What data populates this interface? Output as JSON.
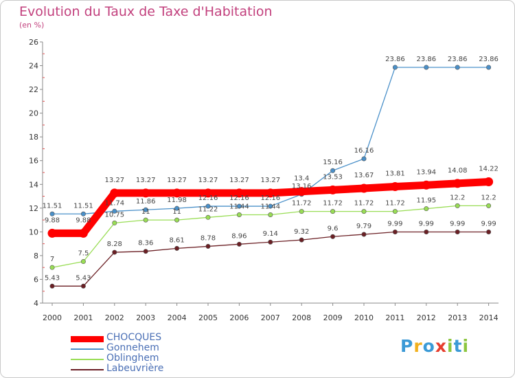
{
  "title": "Evolution du Taux de Taxe d'Habitation",
  "subtitle": "(en %)",
  "logo": {
    "text": "Proxiti",
    "letters": [
      "P",
      "r",
      "o",
      "x",
      "i",
      "t",
      "i"
    ],
    "colors": [
      "#3b9ad6",
      "#f2b01e",
      "#3b9ad6",
      "#e63d2d",
      "#8cc63f",
      "#3b9ad6",
      "#8cc63f"
    ]
  },
  "chart_data": {
    "type": "line",
    "title": "Evolution du Taux de Taxe d'Habitation",
    "ylabel": "(en %)",
    "xlabel": "",
    "x": [
      "2000",
      "2001",
      "2002",
      "2003",
      "2004",
      "2005",
      "2006",
      "2007",
      "2008",
      "2009",
      "2010",
      "2011",
      "2012",
      "2013",
      "2014"
    ],
    "ylim": [
      4,
      26
    ],
    "yticks": [
      4,
      6,
      8,
      10,
      12,
      14,
      16,
      18,
      20,
      22,
      24,
      26
    ],
    "grid": false,
    "legend_position": "bottom-left",
    "series": [
      {
        "name": "CHOCQUES",
        "color": "#ff0000",
        "emphasis": true,
        "values": [
          9.88,
          9.88,
          13.27,
          13.27,
          13.27,
          13.27,
          13.27,
          13.27,
          13.4,
          13.53,
          13.67,
          13.81,
          13.94,
          14.08,
          14.22
        ],
        "labels": [
          "9.88",
          "9.88",
          "13.27",
          "13.27",
          "13.27",
          "13.27",
          "13.27",
          "13.27",
          "13.4",
          "13.53",
          "13.67",
          "13.81",
          "13.94",
          "14.08",
          "14.22"
        ]
      },
      {
        "name": "Gonnehem",
        "color": "#4a90c9",
        "values": [
          11.51,
          11.51,
          11.74,
          11.86,
          11.98,
          12.16,
          12.16,
          12.16,
          13.16,
          15.16,
          16.16,
          23.86,
          23.86,
          23.86,
          23.86
        ],
        "labels": [
          "11.51",
          "11.51",
          "11.74",
          "11.86",
          "11.98",
          "12.16",
          "12.16",
          "12.16",
          "13.16",
          "15.16",
          "16.16",
          "23.86",
          "23.86",
          "23.86",
          "23.86"
        ]
      },
      {
        "name": "Oblinghem",
        "color": "#99dd55",
        "values": [
          7,
          7.5,
          10.75,
          11,
          11,
          11.22,
          11.44,
          11.44,
          11.72,
          11.72,
          11.72,
          11.72,
          11.95,
          12.2,
          12.2
        ],
        "labels": [
          "7",
          "7.5",
          "10.75",
          "11",
          "11",
          "11.22",
          "11.44",
          "11.44",
          "11.72",
          "11.72",
          "11.72",
          "11.72",
          "11.95",
          "12.2",
          "12.2"
        ]
      },
      {
        "name": "Labeuvrière",
        "color": "#6b1f24",
        "values": [
          5.43,
          5.43,
          8.28,
          8.36,
          8.61,
          8.78,
          8.96,
          9.14,
          9.32,
          9.6,
          9.79,
          9.99,
          9.99,
          9.99,
          9.99
        ],
        "labels": [
          "5.43",
          "5.43",
          "8.28",
          "8.36",
          "8.61",
          "8.78",
          "8.96",
          "9.14",
          "9.32",
          "9.6",
          "9.79",
          "9.99",
          "9.99",
          "9.99",
          "9.99"
        ]
      }
    ]
  }
}
